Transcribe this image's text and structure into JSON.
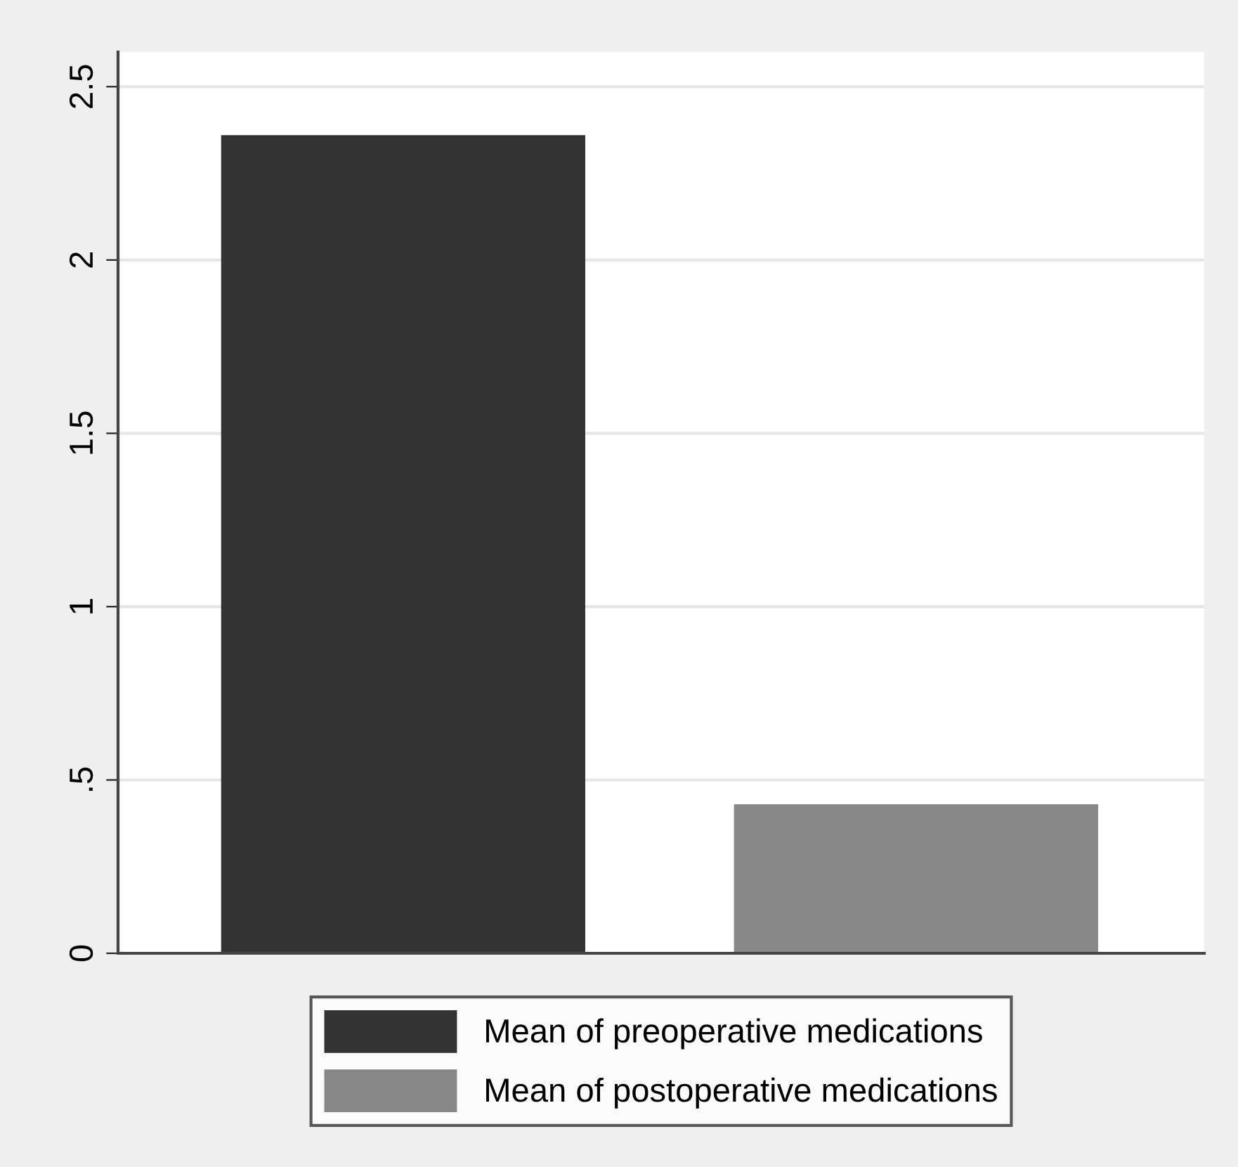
{
  "chart_data": {
    "type": "bar",
    "categories": [
      null,
      null
    ],
    "series": [
      {
        "name": "Mean of preoperative medications",
        "color": "#333333",
        "values": [
          2.36,
          null
        ]
      },
      {
        "name": "Mean of postoperative medications",
        "color": "#878787",
        "values": [
          null,
          0.43
        ]
      }
    ],
    "ylim": [
      0,
      2.6
    ],
    "yticks": [
      0,
      {
        "value": 0.5,
        "label": ".5"
      },
      1,
      1.5,
      2,
      2.5
    ],
    "grid": "y",
    "legend": "bottom"
  }
}
